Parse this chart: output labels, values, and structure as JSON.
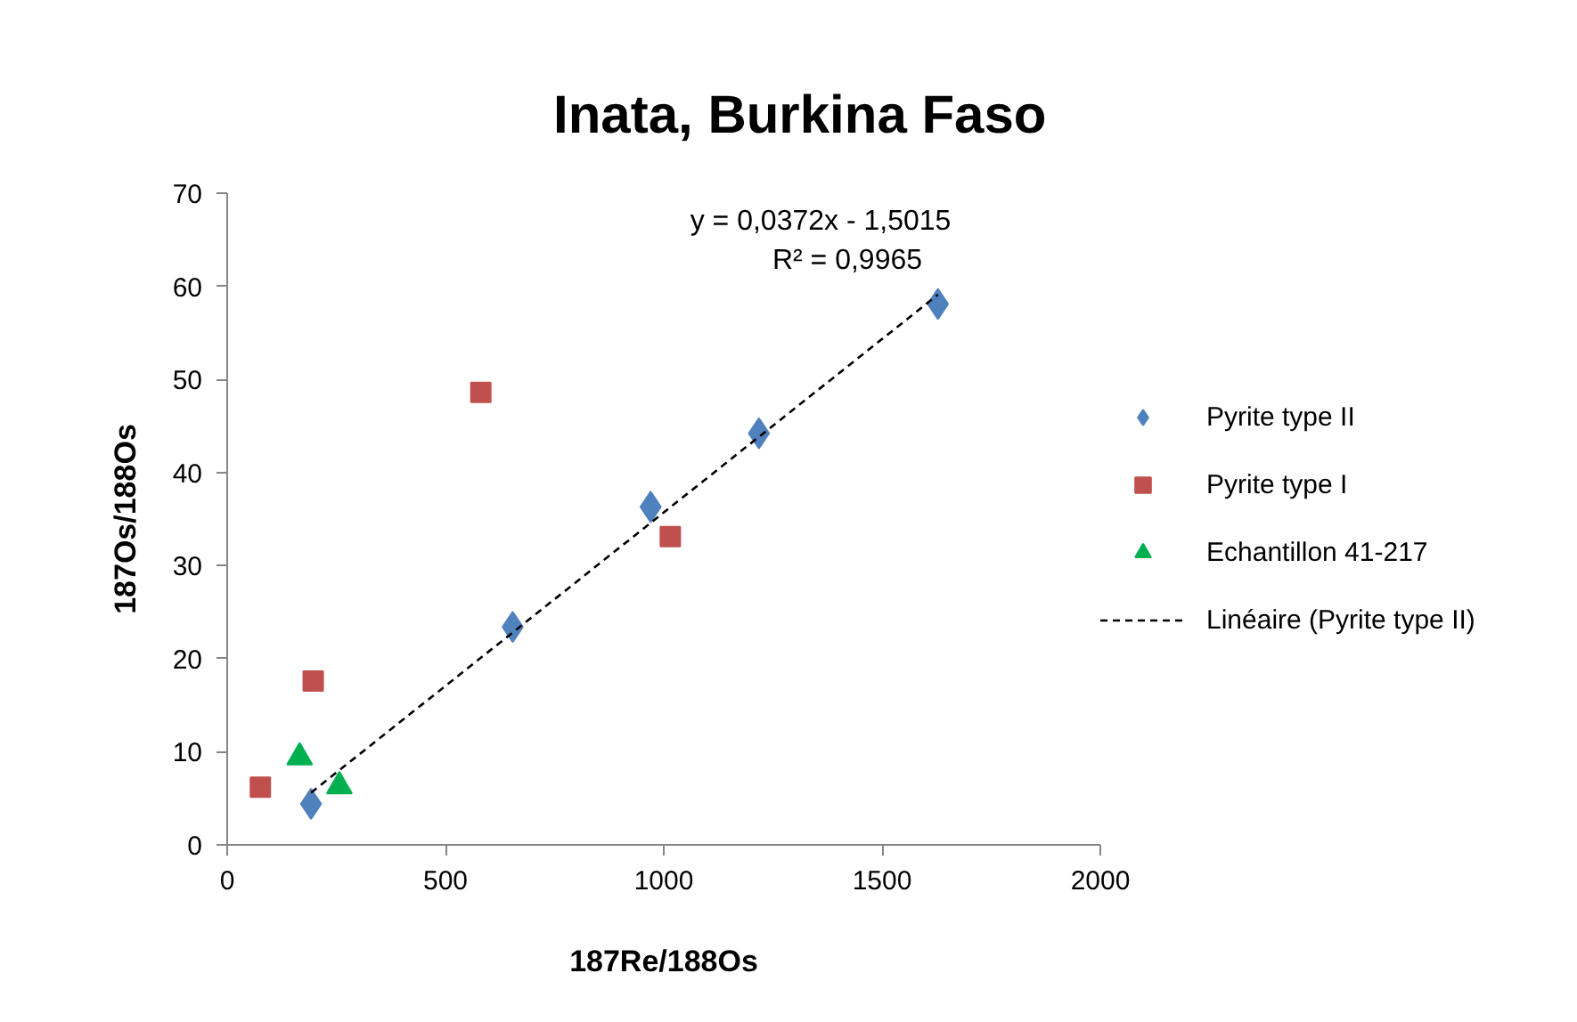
{
  "chart_data": {
    "type": "scatter",
    "title": "Inata, Burkina Faso",
    "xlabel": "187Re/188Os",
    "ylabel": "187Os/188Os",
    "annotations": [
      "y = 0,0372x - 1,5015",
      "R² = 0,9965"
    ],
    "xlim": [
      0,
      2000
    ],
    "ylim": [
      0,
      70
    ],
    "xticks": [
      0,
      500,
      1000,
      1500,
      2000
    ],
    "yticks": [
      0,
      10,
      20,
      30,
      40,
      50,
      60,
      70
    ],
    "legend": "right",
    "series": [
      {
        "name": "Pyrite type II",
        "color": "#4f81bd",
        "marker": "diamond",
        "x": [
          192,
          654,
          970,
          1218,
          1628
        ],
        "values": [
          4.4,
          23.4,
          36.3,
          44.2,
          58.1
        ]
      },
      {
        "name": "Pyrite type I",
        "color": "#c0504d",
        "marker": "square",
        "x": [
          76,
          197,
          581,
          1015
        ],
        "values": [
          6.2,
          17.6,
          48.6,
          33.1
        ]
      },
      {
        "name": "Echantillon 41-217",
        "color": "#00b050",
        "marker": "triangle",
        "x": [
          166,
          257
        ],
        "values": [
          9.4,
          6.3
        ]
      },
      {
        "name": "Linéaire (Pyrite type II)",
        "type": "line",
        "color": "#000000",
        "line_style": "dashed",
        "marker": "none",
        "x": [
          192,
          1628
        ],
        "values": [
          5.6,
          59.1
        ]
      }
    ]
  }
}
